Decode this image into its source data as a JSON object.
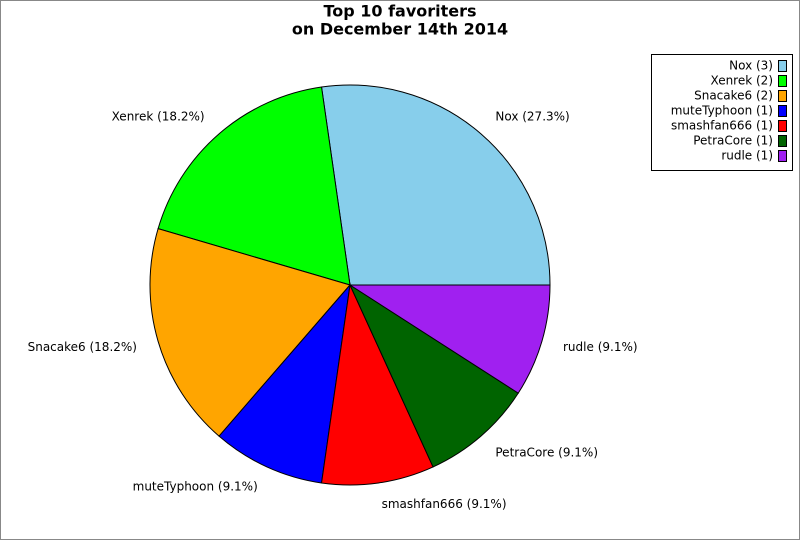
{
  "chart_data": {
    "type": "pie",
    "title": "Top 10 favoriters",
    "subtitle": "on December 14th 2014",
    "categories": [
      "Nox (3)",
      "Xenrek (2)",
      "Snacake6 (2)",
      "muteTyphoon (1)",
      "smashfan666 (1)",
      "PetraCore (1)",
      "rudle (1)"
    ],
    "values": [
      3,
      2,
      2,
      1,
      1,
      1,
      1
    ],
    "slice_labels": [
      "Nox (27.3%)",
      "Xenrek (18.2%)",
      "Snacake6 (18.2%)",
      "muteTyphoon (9.1%)",
      "smashfan666 (9.1%)",
      "PetraCore (9.1%)",
      "rudle (9.1%)"
    ],
    "colors": [
      "#87ceeb",
      "#00ff00",
      "#ffa500",
      "#0000ff",
      "#ff0000",
      "#006400",
      "#a020f0"
    ],
    "legend": "top-right"
  }
}
